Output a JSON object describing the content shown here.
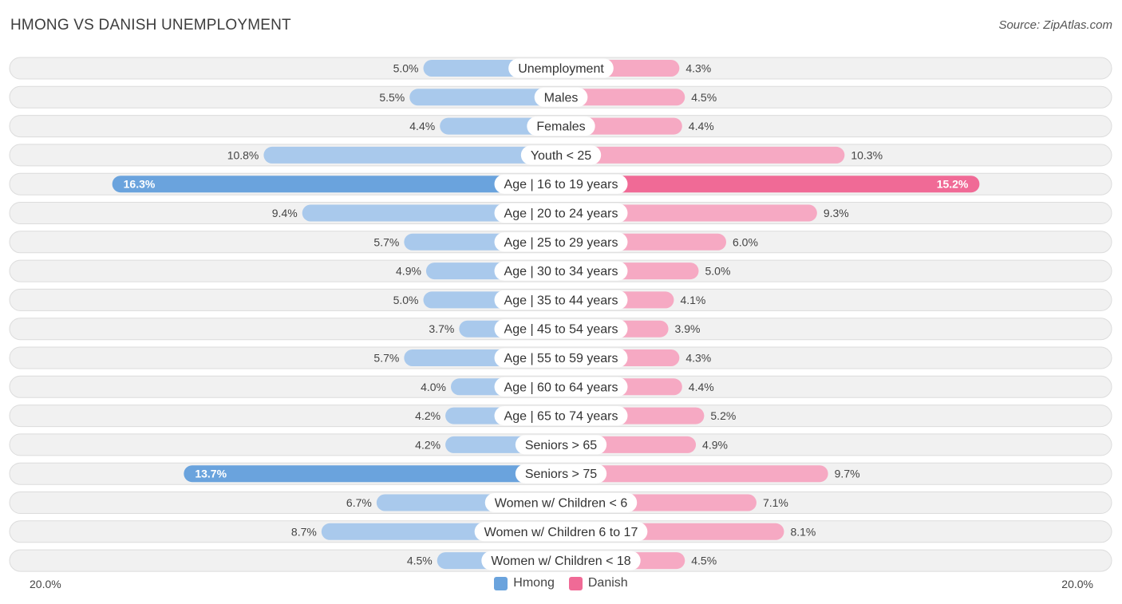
{
  "header": {
    "title": "HMONG VS DANISH UNEMPLOYMENT",
    "source": "Source: ZipAtlas.com"
  },
  "colors": {
    "hmong_strong": "#6aa3dd",
    "hmong_light": "#a9c9ec",
    "danish_strong": "#f06a96",
    "danish_light": "#f6a9c3",
    "row_bg": "#f1f1f1",
    "row_border": "#dcdcdc"
  },
  "axis": {
    "left_label": "20.0%",
    "right_label": "20.0%"
  },
  "legend": {
    "hmong": "Hmong",
    "danish": "Danish"
  },
  "chart_data": {
    "type": "bar",
    "orientation": "horizontal-diverging",
    "title": "HMONG VS DANISH UNEMPLOYMENT",
    "xlim": [
      -20,
      20
    ],
    "categories": [
      "Unemployment",
      "Males",
      "Females",
      "Youth < 25",
      "Age | 16 to 19 years",
      "Age | 20 to 24 years",
      "Age | 25 to 29 years",
      "Age | 30 to 34 years",
      "Age | 35 to 44 years",
      "Age | 45 to 54 years",
      "Age | 55 to 59 years",
      "Age | 60 to 64 years",
      "Age | 65 to 74 years",
      "Seniors > 65",
      "Seniors > 75",
      "Women w/ Children < 6",
      "Women w/ Children 6 to 17",
      "Women w/ Children < 18"
    ],
    "series": [
      {
        "name": "Hmong",
        "values": [
          5.0,
          5.5,
          4.4,
          10.8,
          16.3,
          9.4,
          5.7,
          4.9,
          5.0,
          3.7,
          5.7,
          4.0,
          4.2,
          4.2,
          13.7,
          6.7,
          8.7,
          4.5
        ],
        "labels": [
          "5.0%",
          "5.5%",
          "4.4%",
          "10.8%",
          "16.3%",
          "9.4%",
          "5.7%",
          "4.9%",
          "5.0%",
          "3.7%",
          "5.7%",
          "4.0%",
          "4.2%",
          "4.2%",
          "13.7%",
          "6.7%",
          "8.7%",
          "4.5%"
        ]
      },
      {
        "name": "Danish",
        "values": [
          4.3,
          4.5,
          4.4,
          10.3,
          15.2,
          9.3,
          6.0,
          5.0,
          4.1,
          3.9,
          4.3,
          4.4,
          5.2,
          4.9,
          9.7,
          7.1,
          8.1,
          4.5
        ],
        "labels": [
          "4.3%",
          "4.5%",
          "4.4%",
          "10.3%",
          "15.2%",
          "9.3%",
          "6.0%",
          "5.0%",
          "4.1%",
          "3.9%",
          "4.3%",
          "4.4%",
          "5.2%",
          "4.9%",
          "9.7%",
          "7.1%",
          "8.1%",
          "4.5%"
        ]
      }
    ],
    "legend_position": "bottom-center"
  }
}
